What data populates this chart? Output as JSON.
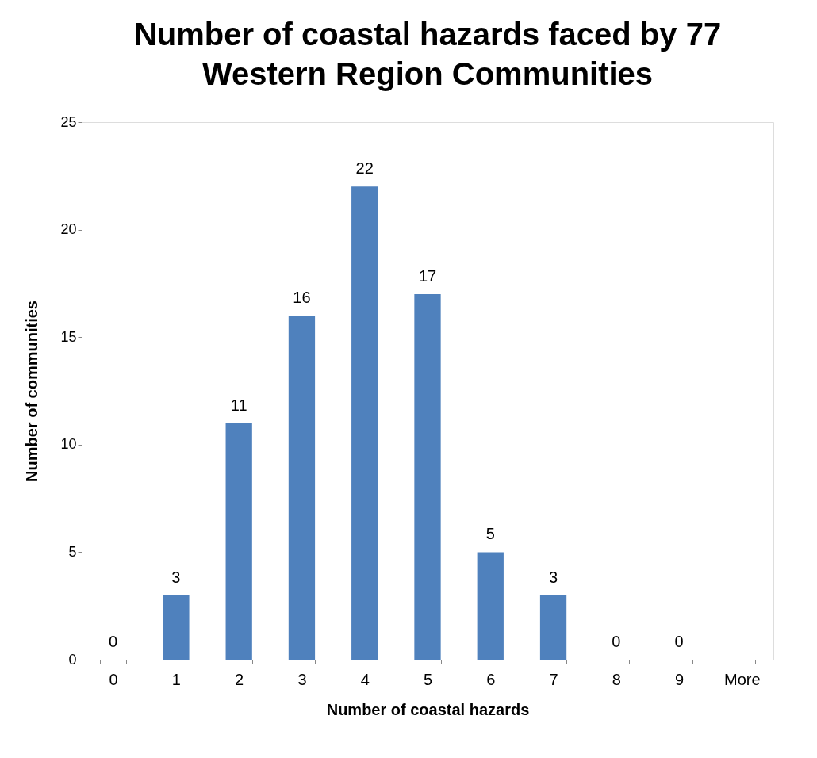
{
  "chart_data": {
    "type": "bar",
    "title": "Number of coastal hazards  faced by 77 Western Region Communities",
    "xlabel": "Number of coastal hazards",
    "ylabel": "Number of communities",
    "categories": [
      "0",
      "1",
      "2",
      "3",
      "4",
      "5",
      "6",
      "7",
      "8",
      "9",
      "More"
    ],
    "values": [
      0,
      3,
      11,
      16,
      22,
      17,
      5,
      3,
      0,
      0,
      null
    ],
    "color": "#4f81bd",
    "ylim": [
      0,
      25
    ],
    "yticks": [
      0,
      5,
      10,
      15,
      20,
      25
    ],
    "grid": false,
    "data_labels": true
  }
}
